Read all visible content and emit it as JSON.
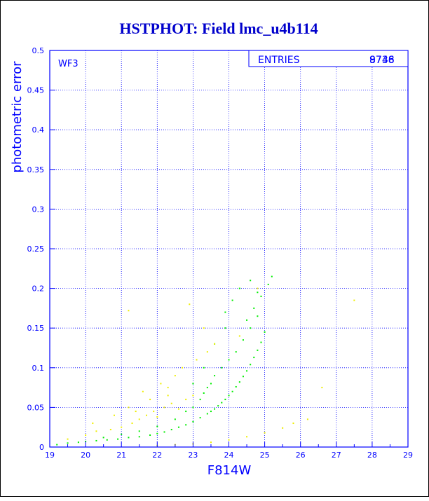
{
  "chart_data": {
    "type": "scatter",
    "title": "HSTPHOT: Field lmc_u4b114",
    "xlabel": "F814W",
    "ylabel": "photometric error",
    "panel_label": "WF3",
    "stats_label": "ENTRIES",
    "stats_values": [
      "8746",
      "9738"
    ],
    "xlim": [
      19,
      29
    ],
    "ylim": [
      0,
      0.5
    ],
    "x_ticks": [
      "19",
      "20",
      "21",
      "22",
      "23",
      "24",
      "25",
      "26",
      "27",
      "28",
      "29"
    ],
    "y_ticks": [
      "0",
      "0.05",
      "0.1",
      "0.15",
      "0.2",
      "0.25",
      "0.3",
      "0.35",
      "0.4",
      "0.45",
      "0.5"
    ],
    "grid": true,
    "colors": {
      "axis": "#0000ff",
      "title": "#0000cc",
      "series_green": "#00ee00",
      "series_yellow": "#eeee00",
      "frame": "#000000"
    },
    "series": [
      {
        "color": "green",
        "x": [
          19.2,
          19.5,
          19.8,
          20.0,
          20.3,
          20.6,
          20.9,
          21.2,
          21.5,
          21.8,
          22.0,
          22.2,
          22.4,
          22.6,
          22.8,
          23.0,
          23.2,
          23.4,
          23.5,
          23.6,
          23.7,
          23.8,
          23.9,
          24.0,
          24.1,
          24.2,
          24.3,
          24.4,
          24.5,
          24.6,
          24.7,
          24.8,
          24.9,
          25.0,
          20.5,
          21.0,
          21.5,
          22.0,
          22.5,
          22.8,
          23.0,
          23.2,
          23.3,
          23.4,
          23.5,
          23.6,
          23.8,
          24.0,
          24.2,
          24.4,
          24.6,
          24.8,
          23.9,
          24.1,
          24.3,
          24.5,
          24.7,
          24.9,
          25.1,
          25.2,
          24.6,
          24.8,
          23.0,
          23.3,
          23.6,
          23.9
        ],
        "y": [
          0.003,
          0.005,
          0.006,
          0.007,
          0.008,
          0.009,
          0.01,
          0.012,
          0.013,
          0.015,
          0.017,
          0.019,
          0.022,
          0.025,
          0.028,
          0.032,
          0.037,
          0.042,
          0.045,
          0.048,
          0.052,
          0.056,
          0.06,
          0.065,
          0.07,
          0.076,
          0.082,
          0.089,
          0.096,
          0.104,
          0.113,
          0.122,
          0.132,
          0.145,
          0.012,
          0.016,
          0.02,
          0.026,
          0.035,
          0.045,
          0.05,
          0.06,
          0.068,
          0.075,
          0.08,
          0.09,
          0.1,
          0.11,
          0.12,
          0.135,
          0.15,
          0.165,
          0.17,
          0.185,
          0.2,
          0.16,
          0.175,
          0.19,
          0.205,
          0.215,
          0.21,
          0.195,
          0.08,
          0.1,
          0.13,
          0.15
        ]
      },
      {
        "color": "yellow",
        "x": [
          19.5,
          20.0,
          20.3,
          20.7,
          21.0,
          21.3,
          21.5,
          21.7,
          21.9,
          22.0,
          22.2,
          22.4,
          22.6,
          22.8,
          23.0,
          21.2,
          21.6,
          22.1,
          22.5,
          21.8,
          22.3,
          22.7,
          23.1,
          23.4,
          20.2,
          20.8,
          22.0,
          22.5,
          23.0,
          23.5,
          24.0,
          24.5,
          25.0,
          25.5,
          25.8,
          26.2,
          21.2,
          22.9,
          23.3,
          24.3,
          26.6,
          27.5,
          21.4,
          22.3,
          23.6,
          24.8
        ],
        "y": [
          0.01,
          0.015,
          0.02,
          0.022,
          0.025,
          0.03,
          0.035,
          0.04,
          0.045,
          0.038,
          0.05,
          0.055,
          0.048,
          0.06,
          0.065,
          0.05,
          0.07,
          0.08,
          0.09,
          0.06,
          0.075,
          0.1,
          0.11,
          0.12,
          0.03,
          0.04,
          0.002,
          0.003,
          0.004,
          0.006,
          0.009,
          0.013,
          0.018,
          0.024,
          0.03,
          0.035,
          0.172,
          0.18,
          0.15,
          0.14,
          0.075,
          0.185,
          0.045,
          0.065,
          0.13,
          0.2
        ]
      }
    ]
  }
}
